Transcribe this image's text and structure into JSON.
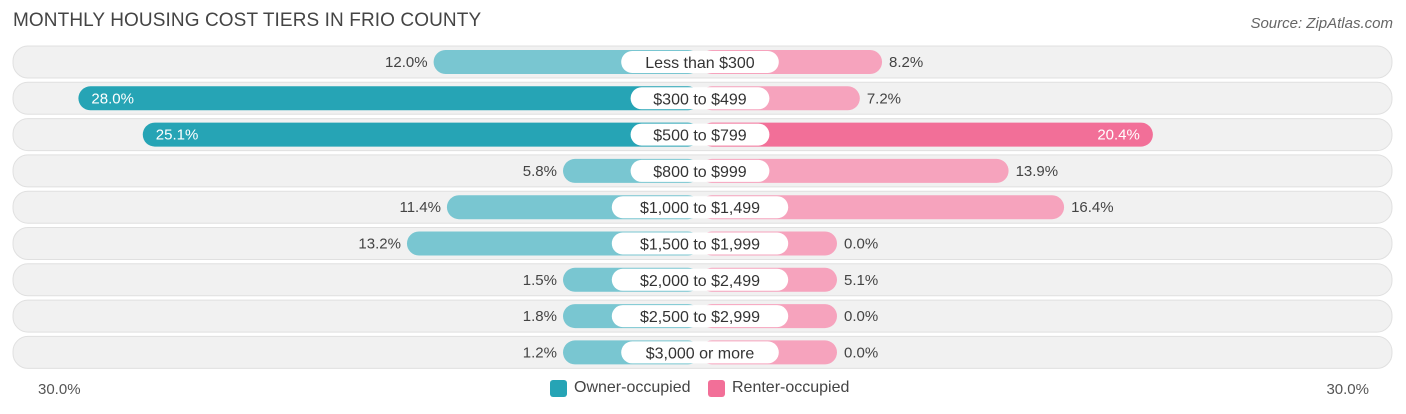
{
  "header": {
    "title": "MONTHLY HOUSING COST TIERS IN FRIO COUNTY",
    "source": "Source: ZipAtlas.com"
  },
  "colors": {
    "owner": "#26a4b5",
    "owner_light": "#79c6d1",
    "renter": "#f26f98",
    "renter_light": "#f6a3bd",
    "row_bg": "#f1f1f1",
    "row_border": "#e0e0e0"
  },
  "axis": {
    "left_label": "30.0%",
    "right_label": "30.0%"
  },
  "legend": {
    "owner_label": "Owner-occupied",
    "renter_label": "Renter-occupied"
  },
  "chart_data": {
    "type": "bar",
    "orientation": "horizontal-diverging",
    "xlim": [
      -30,
      30
    ],
    "categories": [
      "Less than $300",
      "$300 to $499",
      "$500 to $799",
      "$800 to $999",
      "$1,000 to $1,499",
      "$1,500 to $1,999",
      "$2,000 to $2,499",
      "$2,500 to $2,999",
      "$3,000 or more"
    ],
    "series": [
      {
        "name": "Owner-occupied",
        "values": [
          12.0,
          28.0,
          25.1,
          5.8,
          11.4,
          13.2,
          1.5,
          1.8,
          1.2
        ],
        "labels": [
          "12.0%",
          "28.0%",
          "25.1%",
          "5.8%",
          "11.4%",
          "13.2%",
          "1.5%",
          "1.8%",
          "1.2%"
        ]
      },
      {
        "name": "Renter-occupied",
        "values": [
          8.2,
          7.2,
          20.4,
          13.9,
          16.4,
          0.0,
          5.1,
          0.0,
          0.0
        ],
        "labels": [
          "8.2%",
          "7.2%",
          "20.4%",
          "13.9%",
          "16.4%",
          "0.0%",
          "5.1%",
          "0.0%",
          "0.0%"
        ]
      }
    ]
  }
}
